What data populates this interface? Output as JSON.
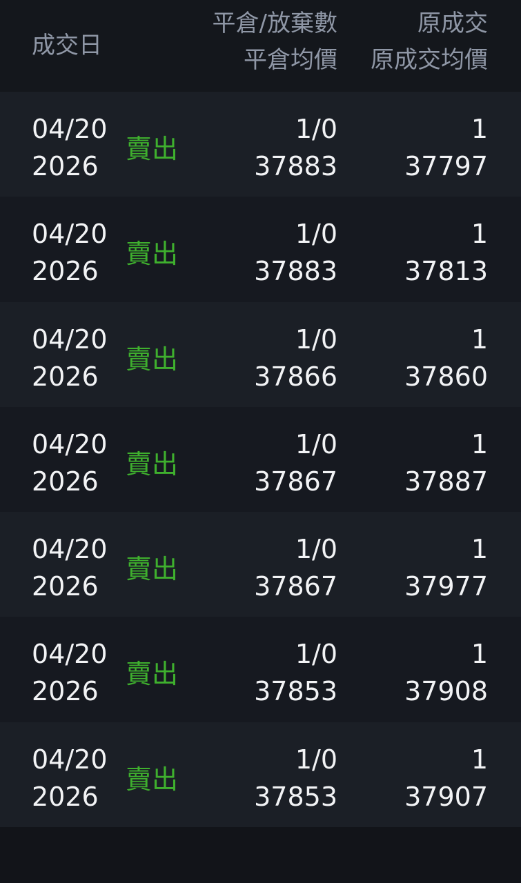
{
  "header": {
    "date": "成交日",
    "close_qty": "平倉/放棄數",
    "close_avg": "平倉均價",
    "orig_qty": "原成交",
    "orig_avg": "原成交均價"
  },
  "colors": {
    "sell": "#3fb02e",
    "text": "#f2f3f5",
    "header_text": "#8f97a6"
  },
  "rows": [
    {
      "date": "04/20",
      "year": "2026",
      "side": "賣出",
      "close_qty": "1/0",
      "close_avg": "37883",
      "orig_qty": "1",
      "orig_avg": "37797"
    },
    {
      "date": "04/20",
      "year": "2026",
      "side": "賣出",
      "close_qty": "1/0",
      "close_avg": "37883",
      "orig_qty": "1",
      "orig_avg": "37813"
    },
    {
      "date": "04/20",
      "year": "2026",
      "side": "賣出",
      "close_qty": "1/0",
      "close_avg": "37866",
      "orig_qty": "1",
      "orig_avg": "37860"
    },
    {
      "date": "04/20",
      "year": "2026",
      "side": "賣出",
      "close_qty": "1/0",
      "close_avg": "37867",
      "orig_qty": "1",
      "orig_avg": "37887"
    },
    {
      "date": "04/20",
      "year": "2026",
      "side": "賣出",
      "close_qty": "1/0",
      "close_avg": "37867",
      "orig_qty": "1",
      "orig_avg": "37977"
    },
    {
      "date": "04/20",
      "year": "2026",
      "side": "賣出",
      "close_qty": "1/0",
      "close_avg": "37853",
      "orig_qty": "1",
      "orig_avg": "37908"
    },
    {
      "date": "04/20",
      "year": "2026",
      "side": "賣出",
      "close_qty": "1/0",
      "close_avg": "37853",
      "orig_qty": "1",
      "orig_avg": "37907"
    }
  ]
}
